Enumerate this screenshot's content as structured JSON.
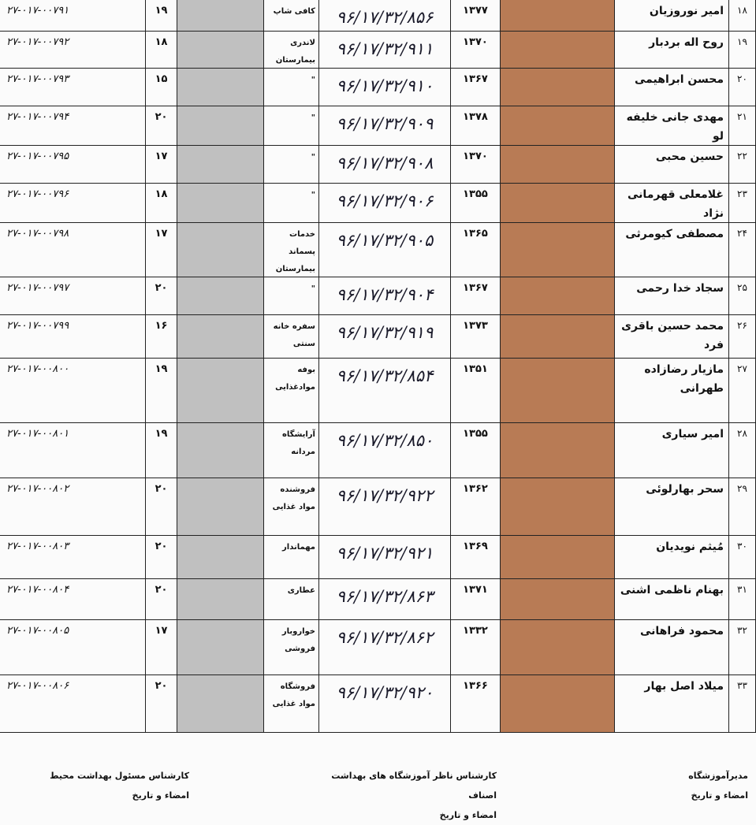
{
  "table": {
    "rows": [
      [
        "۱۸",
        "امیر نوروزیان",
        "۱۳۷۷",
        "۹۶/۱۷/۳۲/۸۵۶",
        "کافی شاپ",
        "۱۹",
        "۲۷-۰۱۷-۰۰۷۹۱"
      ],
      [
        "۱۹",
        "روح اله بردبار",
        "۱۳۷۰",
        "۹۶/۱۷/۳۲/۹۱۱",
        "لاندری بیمارستان",
        "۱۸",
        "۲۷-۰۱۷-۰۰۷۹۲"
      ],
      [
        "۲۰",
        "محسن ابراهیمی",
        "۱۳۶۷",
        "۹۶/۱۷/۳۲/۹۱۰",
        "\"",
        "۱۵",
        "۲۷-۰۱۷-۰۰۷۹۳"
      ],
      [
        "۲۱",
        "مهدی جانی خلیفه لو",
        "۱۳۷۸",
        "۹۶/۱۷/۳۲/۹۰۹",
        "\"",
        "۲۰",
        "۲۷-۰۱۷-۰۰۷۹۴"
      ],
      [
        "۲۲",
        "حسین محبی",
        "۱۳۷۰",
        "۹۶/۱۷/۳۲/۹۰۸",
        "\"",
        "۱۷",
        "۲۷-۰۱۷-۰۰۷۹۵"
      ],
      [
        "۲۳",
        "غلامعلی قهرمانی نژاد",
        "۱۳۵۵",
        "۹۶/۱۷/۳۲/۹۰۶",
        "\"",
        "۱۸",
        "۲۷-۰۱۷-۰۰۷۹۶"
      ],
      [
        "۲۴",
        "مصطفی کیومرثی",
        "۱۳۶۵",
        "۹۶/۱۷/۳۲/۹۰۵",
        "خدمات پسماند بیمارستان",
        "۱۷",
        "۲۷-۰۱۷-۰۰۷۹۸"
      ],
      [
        "۲۵",
        "سجاد خدا رحمی",
        "۱۳۶۷",
        "۹۶/۱۷/۳۲/۹۰۴",
        "\"",
        "۲۰",
        "۲۷-۰۱۷-۰۰۷۹۷"
      ],
      [
        "۲۶",
        "محمد حسین باقری فرد",
        "۱۳۷۳",
        "۹۶/۱۷/۳۲/۹۱۹",
        "سفره خانه سنتی",
        "۱۶",
        "۲۷-۰۱۷-۰۰۷۹۹"
      ],
      [
        "۲۷",
        "مازیار رضازاده طهرانی",
        "۱۳۵۱",
        "۹۶/۱۷/۳۲/۸۵۴",
        "بوفه موادغذایی",
        "۱۹",
        "۲۷-۰۱۷-۰۰۸۰۰"
      ],
      [
        "۲۸",
        "امیر سیاری",
        "۱۳۵۵",
        "۹۶/۱۷/۳۲/۸۵۰",
        "آرایشگاه مردانه",
        "۱۹",
        "۲۷-۰۱۷-۰۰۸۰۱"
      ],
      [
        "۲۹",
        "سحر بهارلوئی",
        "۱۳۶۲",
        "۹۶/۱۷/۳۲/۹۲۲",
        "فروشنده مواد غذایی",
        "۲۰",
        "۲۷-۰۱۷-۰۰۸۰۲"
      ],
      [
        "۳۰",
        "مُیثم نویدیان",
        "۱۳۶۹",
        "۹۶/۱۷/۳۲/۹۲۱",
        "مهماندار",
        "۲۰",
        "۲۷-۰۱۷-۰۰۸۰۳"
      ],
      [
        "۳۱",
        "بهنام ناظمی اشنی",
        "۱۳۷۱",
        "۹۶/۱۷/۳۲/۸۶۳",
        "عطاری",
        "۲۰",
        "۲۷-۰۱۷-۰۰۸۰۴"
      ],
      [
        "۳۲",
        "محمود فراهانی",
        "۱۳۳۲",
        "۹۶/۱۷/۳۲/۸۶۲",
        "خواروبار فروشی",
        "۱۷",
        "۲۷-۰۱۷-۰۰۸۰۵"
      ],
      [
        "۳۳",
        "میلاد اصل بهار",
        "۱۳۶۶",
        "۹۶/۱۷/۳۲/۹۲۰",
        "فروشگاه مواد غذایی",
        "۲۰",
        "۲۷-۰۱۷-۰۰۸۰۶"
      ]
    ]
  },
  "footer": {
    "signatures": [
      {
        "title": "مدیرآموزشگاه",
        "caption": "امضاء و تاریخ"
      },
      {
        "title": "کارشناس ناظر آموزشگاه های بهداشت اصناف",
        "caption": "امضاء و تاریخ"
      },
      {
        "title": "کارشناس مسئول بهداشت محیط",
        "caption": "امضاء و تاریخ"
      }
    ]
  }
}
